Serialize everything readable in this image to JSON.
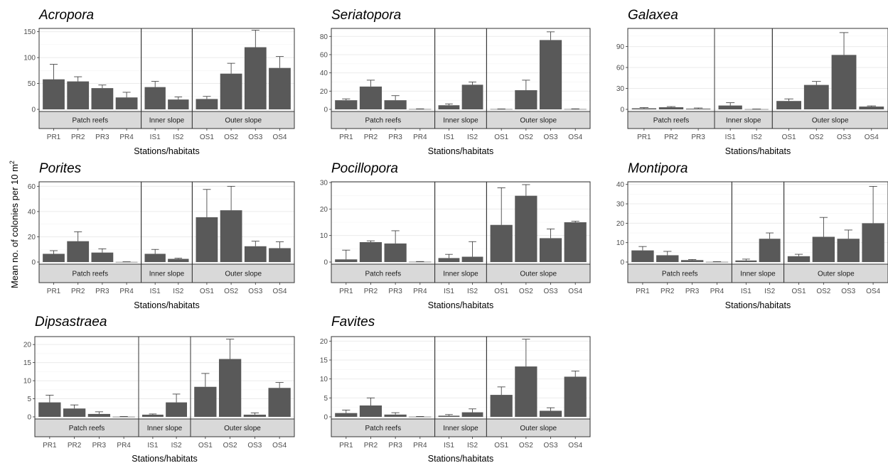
{
  "figure": {
    "y_axis_label": "Mean no. of colonies per 10 m",
    "y_axis_label_superscript": "2",
    "bar_color": "#595959",
    "strip_color": "#d9d9d9",
    "grid_color": "#ebebeb"
  },
  "chart_data": [
    {
      "type": "bar",
      "title": "Acropora",
      "xlabel": "Stations/habitats",
      "ylim": [
        0,
        155
      ],
      "yticks": [
        0,
        50,
        100,
        150
      ],
      "groups": [
        {
          "label": "Patch reefs",
          "categories": [
            "PR1",
            "PR2",
            "PR3",
            "PR4"
          ],
          "values": [
            58,
            54,
            41,
            23
          ],
          "errors": [
            29,
            9,
            6,
            10
          ]
        },
        {
          "label": "Inner slope",
          "categories": [
            "IS1",
            "IS2"
          ],
          "values": [
            43,
            19
          ],
          "errors": [
            11,
            5
          ]
        },
        {
          "label": "Outer slope",
          "categories": [
            "OS1",
            "OS2",
            "OS3",
            "OS4"
          ],
          "values": [
            20,
            69,
            120,
            80
          ],
          "errors": [
            5,
            20,
            33,
            22
          ]
        }
      ]
    },
    {
      "type": "bar",
      "title": "Seriatopora",
      "xlabel": "Stations/habitats",
      "ylim": [
        0,
        88
      ],
      "yticks": [
        0,
        20,
        40,
        60,
        80
      ],
      "groups": [
        {
          "label": "Patch reefs",
          "categories": [
            "PR1",
            "PR2",
            "PR3",
            "PR4"
          ],
          "values": [
            10,
            25,
            10,
            0.3
          ],
          "errors": [
            1.5,
            7,
            5,
            0.3
          ]
        },
        {
          "label": "Inner slope",
          "categories": [
            "IS1",
            "IS2"
          ],
          "values": [
            4.5,
            27
          ],
          "errors": [
            1.5,
            3
          ]
        },
        {
          "label": "Outer slope",
          "categories": [
            "OS1",
            "OS2",
            "OS3",
            "OS4"
          ],
          "values": [
            0.3,
            21,
            76,
            0.3
          ],
          "errors": [
            0.2,
            11,
            9,
            0.3
          ]
        }
      ]
    },
    {
      "type": "bar",
      "title": "Galaxea",
      "xlabel": "Stations/habitats",
      "ylim": [
        0,
        115
      ],
      "yticks": [
        0,
        30,
        60,
        90
      ],
      "groups": [
        {
          "label": "Patch reefs",
          "categories": [
            "PR1",
            "PR2",
            "PR3"
          ],
          "values": [
            1.5,
            3,
            1
          ],
          "errors": [
            1,
            1,
            1
          ]
        },
        {
          "label": "Inner slope",
          "categories": [
            "IS1",
            "IS2"
          ],
          "values": [
            5.5,
            0.3
          ],
          "errors": [
            4,
            0.2
          ]
        },
        {
          "label": "Outer slope",
          "categories": [
            "OS1",
            "OS2",
            "OS3",
            "OS4"
          ],
          "values": [
            12,
            35,
            78,
            4
          ],
          "errors": [
            3,
            5,
            32,
            1
          ]
        }
      ]
    },
    {
      "type": "bar",
      "title": "Porites",
      "xlabel": "Stations/habitats",
      "ylim": [
        0,
        63
      ],
      "yticks": [
        0,
        20,
        40,
        60
      ],
      "groups": [
        {
          "label": "Patch reefs",
          "categories": [
            "PR1",
            "PR2",
            "PR3",
            "PR4"
          ],
          "values": [
            6.5,
            16.5,
            7.5,
            0.1
          ],
          "errors": [
            2.5,
            7.5,
            3,
            0.1
          ]
        },
        {
          "label": "Inner slope",
          "categories": [
            "IS1",
            "IS2"
          ],
          "values": [
            6.5,
            2.5
          ],
          "errors": [
            3.5,
            0.5
          ]
        },
        {
          "label": "Outer slope",
          "categories": [
            "OS1",
            "OS2",
            "OS3",
            "OS4"
          ],
          "values": [
            35.5,
            41,
            12.5,
            11
          ],
          "errors": [
            22,
            19,
            4,
            5
          ]
        }
      ]
    },
    {
      "type": "bar",
      "title": "Pocillopora",
      "xlabel": "Stations/habitats",
      "ylim": [
        0,
        30
      ],
      "yticks": [
        0,
        10,
        20,
        30
      ],
      "groups": [
        {
          "label": "Patch reefs",
          "categories": [
            "PR1",
            "PR2",
            "PR3",
            "PR4"
          ],
          "values": [
            1,
            7.5,
            7,
            0.1
          ],
          "errors": [
            3.5,
            0.5,
            4.8,
            0.1
          ]
        },
        {
          "label": "Inner slope",
          "categories": [
            "IS1",
            "IS2"
          ],
          "values": [
            1.5,
            2
          ],
          "errors": [
            1.4,
            5.7
          ]
        },
        {
          "label": "Outer slope",
          "categories": [
            "OS1",
            "OS2",
            "OS3",
            "OS4"
          ],
          "values": [
            14,
            25,
            9,
            15
          ],
          "errors": [
            14,
            4.2,
            3.5,
            0.4
          ]
        }
      ]
    },
    {
      "type": "bar",
      "title": "Montipora",
      "xlabel": "Stations/habitats",
      "ylim": [
        0,
        41
      ],
      "yticks": [
        0,
        10,
        20,
        30,
        40
      ],
      "groups": [
        {
          "label": "Patch reefs",
          "categories": [
            "PR1",
            "PR2",
            "PR3",
            "PR4"
          ],
          "values": [
            6,
            3.5,
            1,
            0.1
          ],
          "errors": [
            2,
            2,
            0.3,
            0.1
          ]
        },
        {
          "label": "Inner slope",
          "categories": [
            "IS1",
            "IS2"
          ],
          "values": [
            0.8,
            12
          ],
          "errors": [
            0.7,
            3
          ]
        },
        {
          "label": "Outer slope",
          "categories": [
            "OS1",
            "OS2",
            "OS3",
            "OS4"
          ],
          "values": [
            3,
            13,
            12,
            20
          ],
          "errors": [
            1,
            10,
            4.5,
            19
          ]
        }
      ]
    },
    {
      "type": "bar",
      "title": "Dipsastraea",
      "xlabel": "Stations/habitats",
      "ylim": [
        0,
        22
      ],
      "yticks": [
        0,
        5,
        10,
        15,
        20
      ],
      "groups": [
        {
          "label": "Patch reefs",
          "categories": [
            "PR1",
            "PR2",
            "PR3",
            "PR4"
          ],
          "values": [
            4,
            2.3,
            0.8,
            0.05
          ],
          "errors": [
            2,
            1,
            0.6,
            0.05
          ]
        },
        {
          "label": "Inner slope",
          "categories": [
            "IS1",
            "IS2"
          ],
          "values": [
            0.6,
            4
          ],
          "errors": [
            0.2,
            2.3
          ]
        },
        {
          "label": "Outer slope",
          "categories": [
            "OS1",
            "OS2",
            "OS3",
            "OS4"
          ],
          "values": [
            8.3,
            16,
            0.6,
            8
          ],
          "errors": [
            3.7,
            5.5,
            0.5,
            1.5
          ]
        }
      ]
    },
    {
      "type": "bar",
      "title": "Favites",
      "xlabel": "Stations/habitats",
      "ylim": [
        0,
        21
      ],
      "yticks": [
        0,
        5,
        10,
        15,
        20
      ],
      "groups": [
        {
          "label": "Patch reefs",
          "categories": [
            "PR1",
            "PR2",
            "PR3",
            "PR4"
          ],
          "values": [
            1,
            3,
            0.6,
            0.05
          ],
          "errors": [
            0.8,
            2,
            0.5,
            0.05
          ]
        },
        {
          "label": "Inner slope",
          "categories": [
            "IS1",
            "IS2"
          ],
          "values": [
            0.3,
            1.2
          ],
          "errors": [
            0.3,
            0.9
          ]
        },
        {
          "label": "Outer slope",
          "categories": [
            "OS1",
            "OS2",
            "OS3",
            "OS4"
          ],
          "values": [
            5.8,
            13.3,
            1.6,
            10.6
          ],
          "errors": [
            2.1,
            7.2,
            0.8,
            1.5
          ]
        }
      ]
    }
  ]
}
